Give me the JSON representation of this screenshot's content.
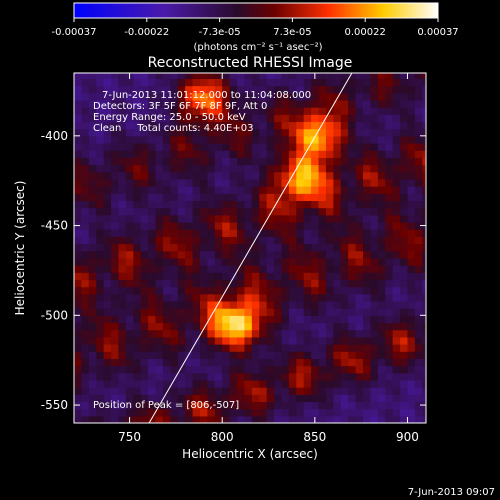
{
  "chart_data": {
    "type": "heatmap",
    "title": "Reconstructed RHESSI Image",
    "xlabel": "Heliocentric X (arcsec)",
    "ylabel": "Heliocentric Y (arcsec)",
    "xlim": [
      720,
      910
    ],
    "ylim": [
      -560,
      -365
    ],
    "x_ticks": [
      750,
      800,
      850,
      900
    ],
    "y_ticks": [
      -400,
      -450,
      -500,
      -550
    ],
    "colorbar": {
      "ticks": [
        "-0.00037",
        "-0.00022",
        "-7.3e-05",
        "7.3e-05",
        "0.00022",
        "0.00037"
      ],
      "unit": "(photons cm⁻² s⁻¹ asec⁻²)",
      "range": [
        -0.00037,
        0.00037
      ]
    },
    "annotations": {
      "time": "7-Jun-2013 11:01:12.000 to 11:04:08.000",
      "detectors": "Detectors: 3F 5F 6F 7F 8F 9F, Att 0",
      "energy": "Energy Range: 25.0 - 50.0 keV",
      "clean": "Clean     Total counts: 4.40E+03",
      "peak": "Position of Peak = [806,-507]"
    },
    "footer": "7-Jun-2013 09:07",
    "limb_line": [
      [
        760,
        -561
      ],
      [
        870,
        -365
      ]
    ],
    "bands": [
      {
        "x": [
          720,
          910
        ],
        "y": [
          -530,
          -560
        ],
        "strength": 0.85
      },
      {
        "x": [
          720,
          910
        ],
        "y": [
          -470,
          -510
        ],
        "strength": 0.75
      },
      {
        "x": [
          720,
          910
        ],
        "y": [
          -430,
          -465
        ],
        "strength": 0.8
      },
      {
        "x": [
          720,
          910
        ],
        "y": [
          -380,
          -415
        ],
        "strength": 0.6
      }
    ],
    "peaks": [
      {
        "x": 806,
        "y": -507,
        "value": 0.00037
      },
      {
        "x": 850,
        "y": -402,
        "value": 0.00033
      },
      {
        "x": 840,
        "y": -425,
        "value": 0.0003
      },
      {
        "x": 788,
        "y": -380,
        "value": 0.00032
      }
    ]
  }
}
